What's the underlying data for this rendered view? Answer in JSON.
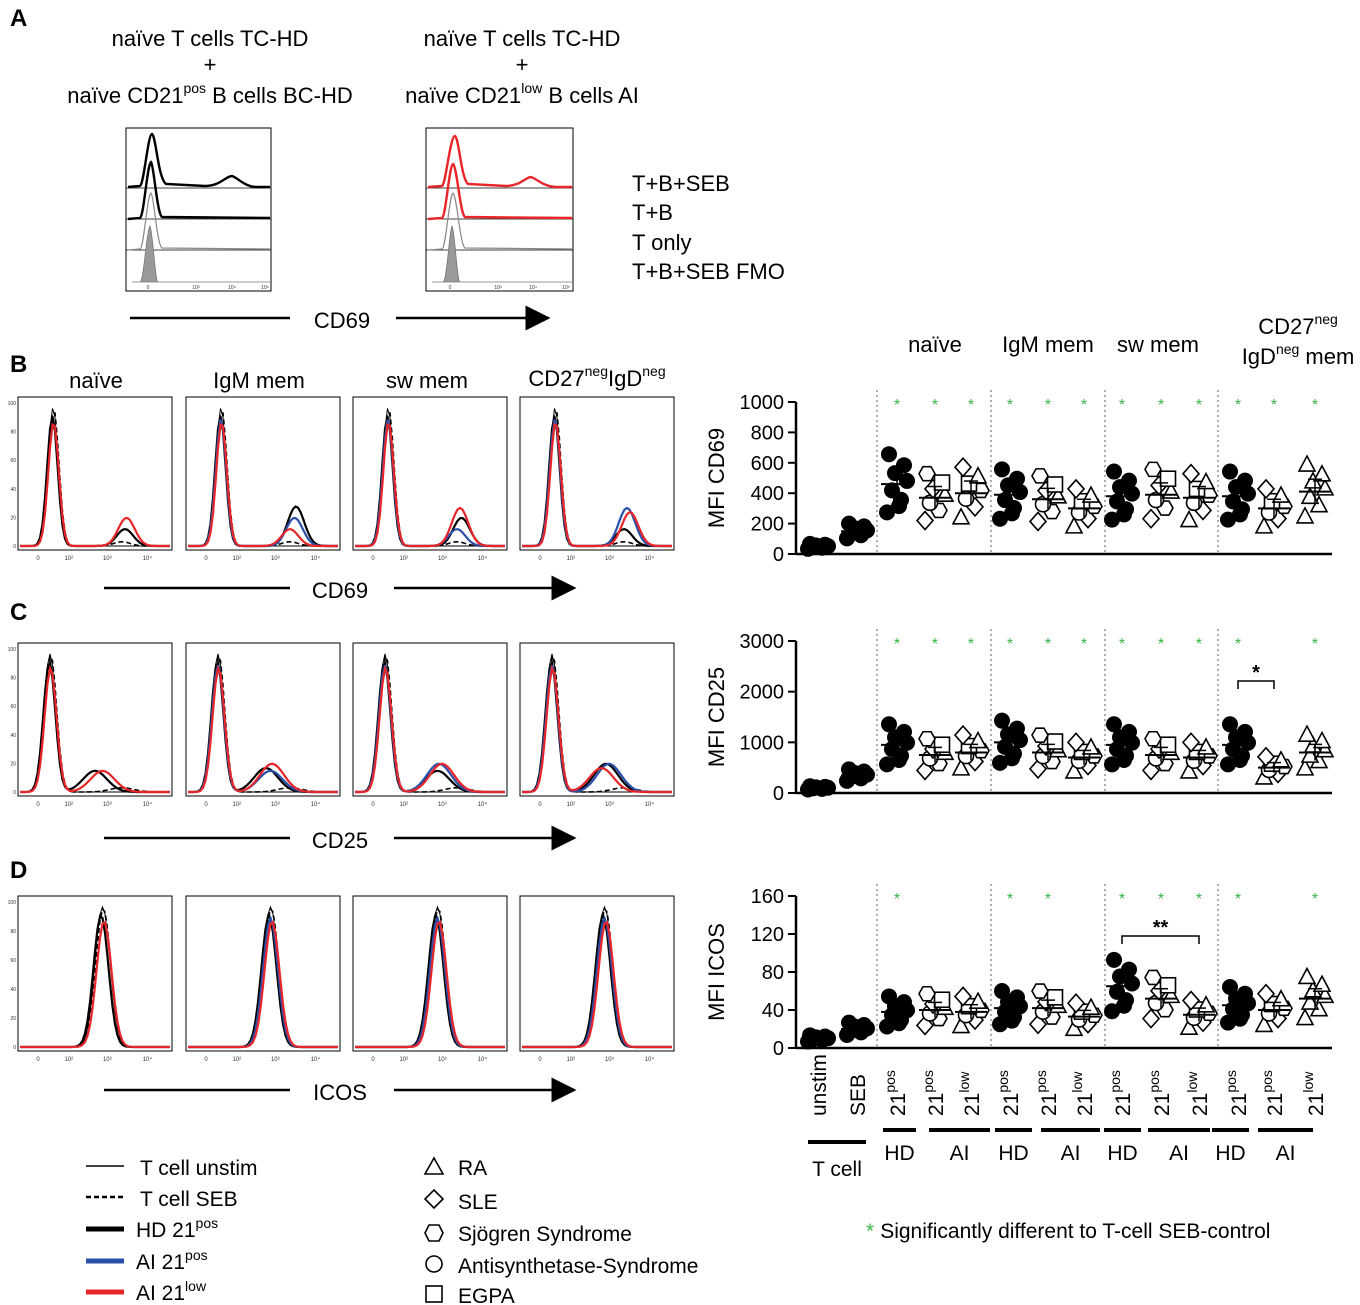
{
  "panel_labels": {
    "A": "A",
    "B": "B",
    "C": "C",
    "D": "D"
  },
  "panelA": {
    "left_title_1": "naïve T cells TC-HD",
    "left_plus": "+",
    "left_title_3_pre": "naïve CD21",
    "left_title_3_sup": "pos",
    "left_title_3_post": " B cells BC-HD",
    "right_title_1": "naïve T cells TC-HD",
    "right_plus": "+",
    "right_title_3_pre": "naïve CD21",
    "right_title_3_sup": "low",
    "right_title_3_post": " B cells AI",
    "legend": [
      "T+B+SEB",
      "T+B",
      "T only",
      "T+B+SEB FMO"
    ],
    "axis_label": "CD69",
    "ticks": [
      "0",
      "10³",
      "10⁴",
      "10⁵"
    ]
  },
  "histo_panels": {
    "titles": [
      "naïve",
      "IgM mem",
      "sw mem",
      "CD27"
    ],
    "title4_sup1": "neg",
    "title4_mid": "IgD",
    "title4_sup2": "neg",
    "ticks": [
      "0",
      "10²",
      "10³",
      "10⁴"
    ],
    "yticks": [
      "100",
      "80",
      "60",
      "40",
      "20",
      "0"
    ],
    "axis_B": "CD69",
    "axis_C": "CD25",
    "axis_D": "ICOS"
  },
  "column_headers": {
    "naive": "naïve",
    "igm": "IgM mem",
    "sw": "sw mem",
    "dn_line1_pre": "CD27",
    "dn_line1_sup": "neg",
    "dn_line2_pre": "IgD",
    "dn_line2_sup": "neg",
    "dn_line2_post": " mem"
  },
  "chart_data": [
    {
      "type": "scatter",
      "title": "MFI CD69",
      "ylabel": "MFI CD69",
      "ylim": [
        0,
        1000
      ],
      "yticks": [
        "0",
        "200",
        "400",
        "600",
        "800",
        "1000"
      ],
      "groups": [
        "T cell unstim",
        "T cell SEB",
        "naïve HD 21pos",
        "naïve AI 21pos",
        "naïve AI 21low",
        "IgM mem HD 21pos",
        "IgM mem AI 21pos",
        "IgM mem AI 21low",
        "sw mem HD 21pos",
        "sw mem AI 21pos",
        "sw mem AI 21low",
        "DN mem HD 21pos",
        "DN mem AI 21pos",
        "DN mem AI 21low"
      ],
      "means": [
        50,
        150,
        460,
        370,
        400,
        390,
        360,
        300,
        380,
        390,
        370,
        380,
        300,
        410
      ],
      "significant_vs_seb": [
        false,
        false,
        true,
        true,
        true,
        true,
        true,
        true,
        true,
        true,
        true,
        true,
        true,
        true
      ],
      "brackets": []
    },
    {
      "type": "scatter",
      "title": "MFI CD25",
      "ylabel": "MFI CD25",
      "ylim": [
        0,
        3000
      ],
      "yticks": [
        "0",
        "1000",
        "2000",
        "3000"
      ],
      "groups": [
        "T cell unstim",
        "T cell SEB",
        "naïve HD 21pos",
        "naïve AI 21pos",
        "naïve AI 21low",
        "IgM mem HD 21pos",
        "IgM mem AI 21pos",
        "IgM mem AI 21low",
        "sw mem HD 21pos",
        "sw mem AI 21pos",
        "sw mem AI 21low",
        "DN mem HD 21pos",
        "DN mem AI 21pos",
        "DN mem AI 21low"
      ],
      "means": [
        100,
        350,
        950,
        750,
        800,
        1000,
        800,
        700,
        950,
        750,
        700,
        950,
        500,
        800
      ],
      "significant_vs_seb": [
        false,
        false,
        true,
        true,
        true,
        true,
        true,
        true,
        true,
        true,
        true,
        true,
        false,
        true
      ],
      "brackets": [
        {
          "from": 11,
          "to": 12,
          "label": "*"
        }
      ]
    },
    {
      "type": "scatter",
      "title": "MFI ICOS",
      "ylabel": "MFI ICOS",
      "ylim": [
        0,
        160
      ],
      "yticks": [
        "0",
        "40",
        "80",
        "120",
        "160"
      ],
      "groups": [
        "T cell unstim",
        "T cell SEB",
        "naïve HD 21pos",
        "naïve AI 21pos",
        "naïve AI 21low",
        "IgM mem HD 21pos",
        "IgM mem AI 21pos",
        "IgM mem AI 21low",
        "sw mem HD 21pos",
        "sw mem AI 21pos",
        "sw mem AI 21low",
        "DN mem HD 21pos",
        "DN mem AI 21pos",
        "DN mem AI 21low"
      ],
      "means": [
        10,
        20,
        38,
        40,
        38,
        42,
        42,
        33,
        65,
        52,
        35,
        45,
        40,
        52
      ],
      "significant_vs_seb": [
        false,
        false,
        true,
        false,
        false,
        true,
        true,
        false,
        true,
        true,
        true,
        true,
        false,
        true
      ],
      "brackets": [
        {
          "from": 8,
          "to": 10,
          "label": "**"
        }
      ]
    }
  ],
  "x_labels": {
    "unstim": "unstim",
    "seb": "SEB",
    "base": "21",
    "pos": "pos",
    "low": "low",
    "hd": "HD",
    "ai": "AI",
    "tcell": "T cell"
  },
  "significance_marker": "*",
  "legend_lines": [
    {
      "label": "T cell unstim",
      "sup": ""
    },
    {
      "label": "T cell SEB",
      "sup": ""
    },
    {
      "label": "HD 21",
      "sup": "pos"
    },
    {
      "label": "AI 21",
      "sup": "pos"
    },
    {
      "label": "AI 21",
      "sup": "low"
    }
  ],
  "legend_symbols": [
    "RA",
    "SLE",
    "Sjögren Syndrome",
    "Antisynthetase-Syndrome",
    "EGPA"
  ],
  "sig_note": "Significantly different to T-cell SEB-control",
  "colors": {
    "red": "#e8262a",
    "blue": "#2a4fa8",
    "green": "#3bb54a",
    "black": "#000000",
    "grey": "#888888"
  }
}
